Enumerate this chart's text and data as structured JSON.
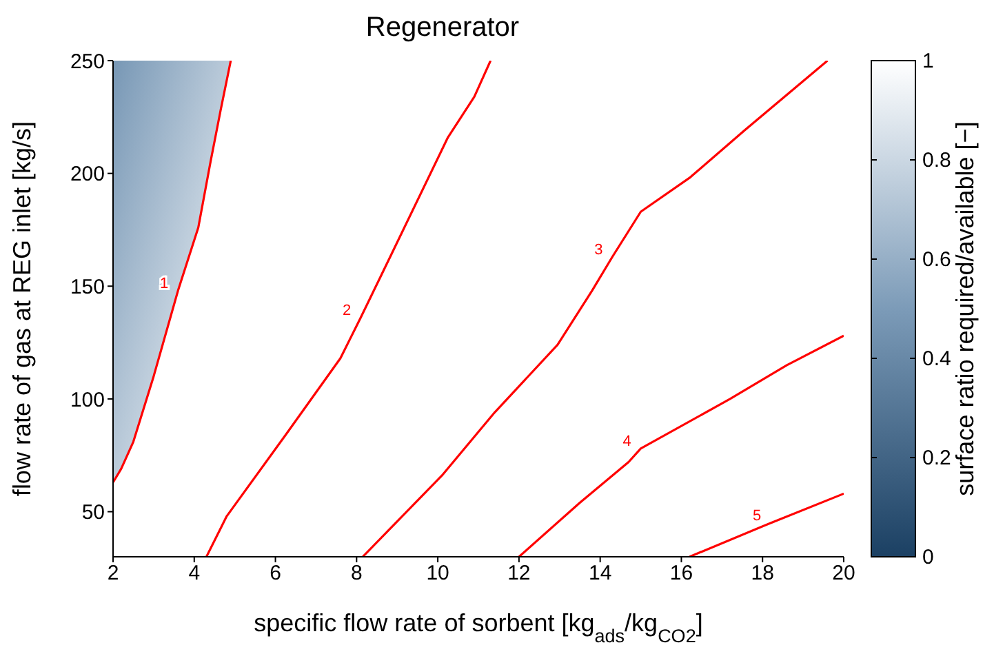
{
  "chart_data": {
    "type": "line",
    "title": "Regenerator",
    "xlabel": "specific flow rate of sorbent [kg$_{ads}$/kg$_{CO2}$]",
    "ylabel": "flow rate of gas at REG inlet [kg/s]",
    "clabel": "surface ratio required/available [−]",
    "clim": [
      0,
      1
    ],
    "cticks": [
      0,
      0.2,
      0.4,
      0.6,
      0.8,
      1
    ],
    "xlim": [
      2,
      20
    ],
    "xticks": [
      2,
      4,
      6,
      8,
      10,
      12,
      14,
      16,
      18,
      20
    ],
    "ylim": [
      30,
      250
    ],
    "yticks": [
      50,
      100,
      150,
      200,
      250
    ],
    "grid": false,
    "legend": false,
    "marker": "none",
    "line_style": "solid",
    "series": [
      {
        "name": "1",
        "color": "#ff0000",
        "x": [
          2,
          2.2,
          2.5,
          3.0,
          3.6,
          4.1,
          4.4,
          4.65,
          4.9
        ],
        "values": [
          63,
          69,
          81,
          110,
          148,
          176,
          205,
          228,
          250
        ]
      },
      {
        "name": "2",
        "color": "#ff0000",
        "x": [
          4.3,
          4.8,
          6.25,
          7.6,
          8.1,
          8.8,
          10.25,
          10.9,
          11.3
        ],
        "values": [
          30,
          48,
          84,
          118,
          136,
          162,
          216,
          234,
          250
        ]
      },
      {
        "name": "3",
        "color": "#ff0000",
        "x": [
          8.15,
          10.1,
          11.4,
          12.95,
          13.8,
          14.3,
          15.0,
          16.2,
          17.55,
          19.6
        ],
        "values": [
          30,
          66,
          94,
          124,
          148,
          163,
          183,
          198,
          219,
          250
        ]
      },
      {
        "name": "4",
        "color": "#ff0000",
        "x": [
          12.0,
          13.5,
          14.7,
          15.0,
          17.2,
          18.6,
          20
        ],
        "values": [
          30,
          54,
          72,
          78,
          100,
          115,
          128
        ]
      },
      {
        "name": "5",
        "color": "#ff0000",
        "x": [
          16.2,
          18.2,
          20
        ],
        "values": [
          30,
          45,
          58
        ]
      }
    ]
  }
}
